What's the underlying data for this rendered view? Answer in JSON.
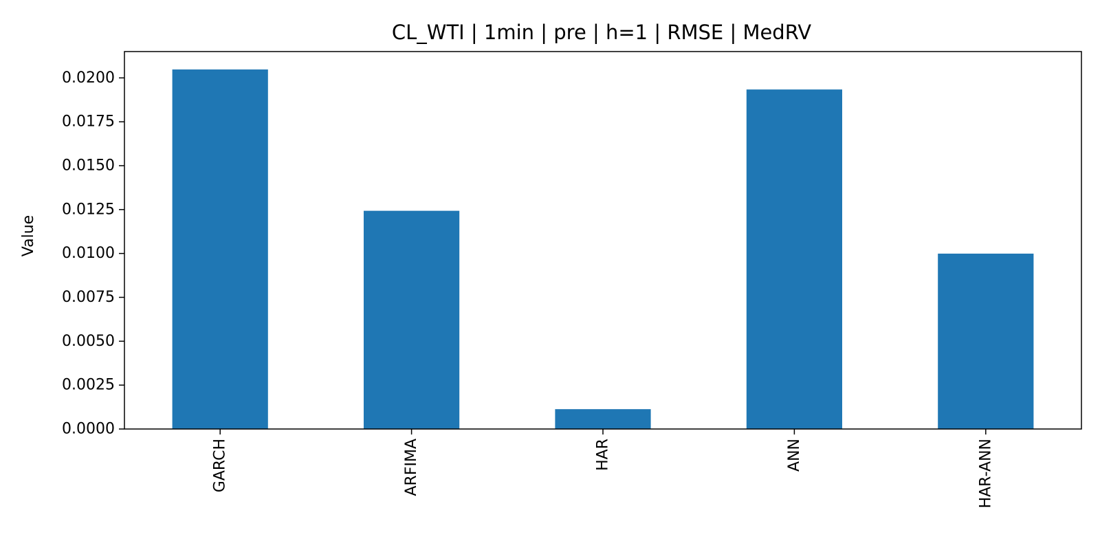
{
  "chart_data": {
    "type": "bar",
    "title": "CL_WTI | 1min | pre | h=1 | RMSE | MedRV",
    "xlabel": "",
    "ylabel": "Value",
    "categories": [
      "GARCH",
      "ARFIMA",
      "HAR",
      "ANN",
      "HAR-ANN"
    ],
    "values": [
      0.02048,
      0.01243,
      0.00113,
      0.01934,
      0.00999
    ],
    "ylim": [
      0,
      0.0215
    ],
    "yticks": [
      0.0,
      0.0025,
      0.005,
      0.0075,
      0.01,
      0.0125,
      0.015,
      0.0175,
      0.02
    ],
    "ytick_labels": [
      "0.0000",
      "0.0025",
      "0.0050",
      "0.0075",
      "0.0100",
      "0.0125",
      "0.0150",
      "0.0175",
      "0.0200"
    ],
    "bar_color": "#1f77b4",
    "grid": false,
    "legend": "none"
  }
}
